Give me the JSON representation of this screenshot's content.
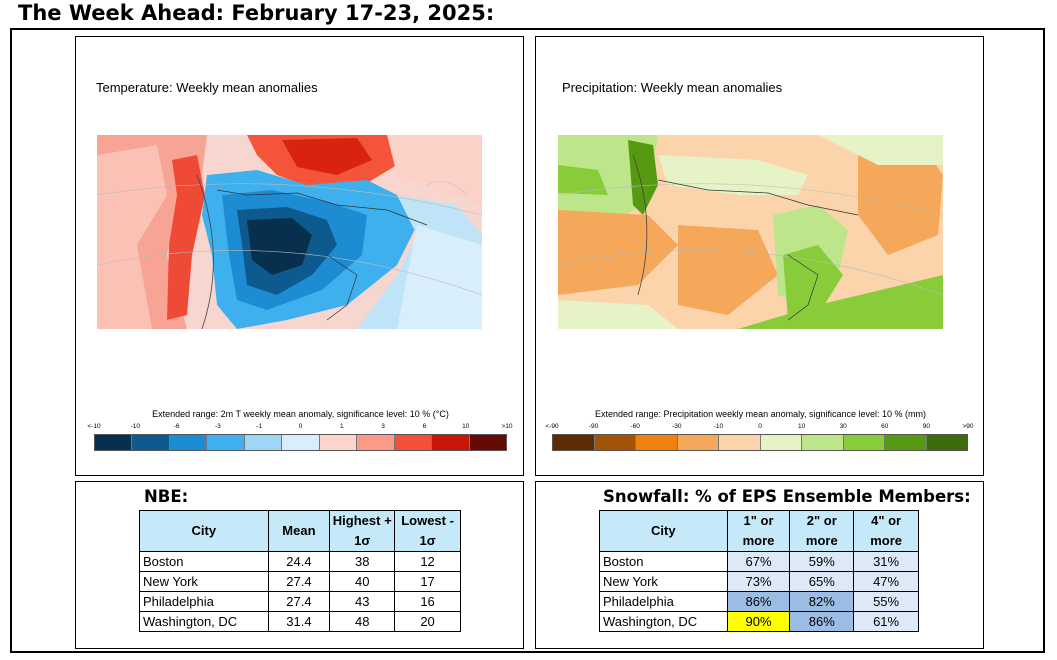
{
  "page_title": "The Week Ahead: February 17-23, 2025:",
  "temperature_panel": {
    "title": "Temperature: Weekly mean anomalies",
    "colorbar_caption": "Extended range: 2m T weekly mean anomaly, significance level: 10 % (°C)",
    "tick_labels": [
      "<-10",
      "-10",
      "-6",
      "-3",
      "-1",
      "0",
      "1",
      "3",
      "6",
      "10",
      ">10"
    ],
    "colors": [
      "#07304f",
      "#0d5a8f",
      "#1e8cd3",
      "#3fb0ee",
      "#9fd6f6",
      "#d8effb",
      "#fdd5cf",
      "#fb9a86",
      "#f45037",
      "#c8170a",
      "#650a05"
    ]
  },
  "precipitation_panel": {
    "title": "Precipitation: Weekly mean anomalies",
    "colorbar_caption": "Extended range: Precipitation weekly mean anomaly, significance level: 10 % (mm)",
    "tick_labels": [
      "<-90",
      "-90",
      "-60",
      "-30",
      "-10",
      "0",
      "10",
      "30",
      "60",
      "90",
      ">90"
    ],
    "colors": [
      "#5c2d04",
      "#a35306",
      "#f0810c",
      "#f5a75a",
      "#fbd4ac",
      "#e5f3c6",
      "#bde58a",
      "#88cc3a",
      "#569a12",
      "#3c6d0a"
    ]
  },
  "nbe": {
    "title": "NBE:",
    "headers": {
      "city": "City",
      "mean": "Mean",
      "highest_1": "Highest +",
      "highest_2": "1σ",
      "lowest_1": "Lowest -",
      "lowest_2": "1σ"
    },
    "rows": [
      {
        "city": "Boston",
        "mean": "24.4",
        "highest": "38",
        "lowest": "12"
      },
      {
        "city": "New York",
        "mean": "27.4",
        "highest": "40",
        "lowest": "17"
      },
      {
        "city": "Philadelphia",
        "mean": "27.4",
        "highest": "43",
        "lowest": "16"
      },
      {
        "city": "Washington, DC",
        "mean": "31.4",
        "highest": "48",
        "lowest": "20"
      }
    ]
  },
  "snowfall": {
    "title": "Snowfall: % of EPS Ensemble Members:",
    "headers": {
      "city": "City",
      "one_1": "1\" or",
      "one_2": "more",
      "two_1": "2\" or",
      "two_2": "more",
      "four_1": "4\" or",
      "four_2": "more"
    },
    "rows": [
      {
        "city": "Boston",
        "one": "67%",
        "two": "59%",
        "four": "31%",
        "one_bg": "#dde9f6",
        "two_bg": "#dde9f6",
        "four_bg": "#dde9f6"
      },
      {
        "city": "New York",
        "one": "73%",
        "two": "65%",
        "four": "47%",
        "one_bg": "#dde9f6",
        "two_bg": "#dde9f6",
        "four_bg": "#dde9f6"
      },
      {
        "city": "Philadelphia",
        "one": "86%",
        "two": "82%",
        "four": "55%",
        "one_bg": "#9cbce4",
        "two_bg": "#9cbce4",
        "four_bg": "#dde9f6"
      },
      {
        "city": "Washington, DC",
        "one": "90%",
        "two": "86%",
        "four": "61%",
        "one_bg": "#ffff00",
        "two_bg": "#9cbce4",
        "four_bg": "#dde9f6"
      }
    ]
  }
}
